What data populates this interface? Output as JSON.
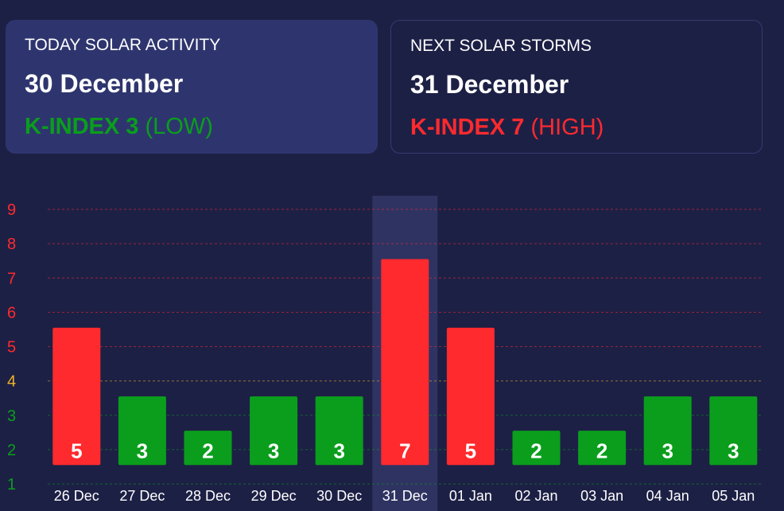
{
  "today": {
    "title": "TODAY SOLAR ACTIVITY",
    "date": "30 December",
    "kindex": "K-INDEX 3",
    "level": "(LOW)",
    "color": "#0a9e1c"
  },
  "next": {
    "title": "NEXT SOLAR STORMS",
    "date": "31 December",
    "kindex": "K-INDEX 7",
    "level": "(HIGH)",
    "color": "#ff2a2e"
  },
  "colors": {
    "high": "#ff2a2e",
    "low": "#0a9e1c",
    "moderate": "#f0b429",
    "background": "#1d2045",
    "highlight": "#2f3362"
  },
  "chart_data": {
    "type": "bar",
    "categories": [
      "26 Dec",
      "27 Dec",
      "28 Dec",
      "29 Dec",
      "30 Dec",
      "31 Dec",
      "01 Jan",
      "02 Jan",
      "03 Jan",
      "04 Jan",
      "05 Jan"
    ],
    "values": [
      5,
      3,
      2,
      3,
      3,
      7,
      5,
      2,
      2,
      3,
      3
    ],
    "ylim": [
      1,
      9
    ],
    "yticks": [
      "1",
      "2",
      "3",
      "4",
      "5",
      "6",
      "7",
      "8",
      "9"
    ],
    "highlight_category": "31 Dec",
    "title": "",
    "xlabel": "",
    "ylabel": ""
  }
}
